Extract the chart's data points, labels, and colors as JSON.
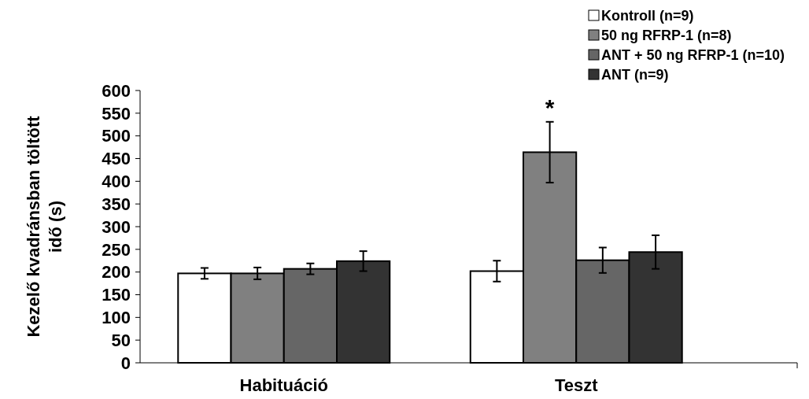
{
  "chart_data": {
    "type": "bar",
    "ylabel": "Kezelő kvadránsban töltött idő (s)",
    "categories": [
      "Habituáció",
      "Teszt"
    ],
    "series": [
      {
        "name": "Kontroll (n=9)",
        "color": "#ffffff",
        "values": [
          197,
          202
        ],
        "errors": [
          12,
          23
        ]
      },
      {
        "name": "50 ng RFRP-1 (n=8)",
        "color": "#808080",
        "values": [
          197,
          464
        ],
        "errors": [
          13,
          67
        ]
      },
      {
        "name": "ANT + 50 ng RFRP-1 (n=10)",
        "color": "#666666",
        "values": [
          207,
          226
        ],
        "errors": [
          12,
          28
        ]
      },
      {
        "name": "ANT (n=9)",
        "color": "#333333",
        "values": [
          224,
          244
        ],
        "errors": [
          22,
          37
        ]
      }
    ],
    "ylim": [
      0,
      600
    ],
    "yticks": [
      0,
      50,
      100,
      150,
      200,
      250,
      300,
      350,
      400,
      450,
      500,
      550,
      600
    ],
    "annotations": [
      "*"
    ],
    "legend": "top right",
    "grid": false
  }
}
